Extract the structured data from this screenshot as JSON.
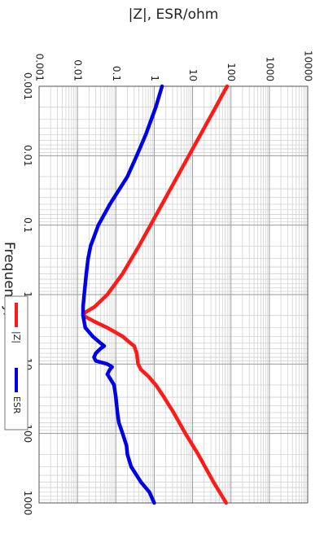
{
  "chart_data": {
    "type": "line",
    "title": "",
    "xlabel": "Frequency/MHz",
    "ylabel": "|Z|, ESR/ohm",
    "x_scale": "log",
    "y_scale": "log",
    "xlim": [
      0.001,
      1000
    ],
    "ylim": [
      0.001,
      10000
    ],
    "x_ticks": [
      "0.001",
      "0.01",
      "0.1",
      "1",
      "10",
      "100",
      "1000"
    ],
    "y_ticks": [
      "0.001",
      "0.01",
      "0.1",
      "1",
      "10",
      "100",
      "1000",
      "10000"
    ],
    "grid": true,
    "legend_position": "bottom",
    "series": [
      {
        "name": "|Z|",
        "color": "#ff1a1a",
        "points": [
          [
            0.001,
            79
          ],
          [
            0.002,
            40
          ],
          [
            0.005,
            16
          ],
          [
            0.01,
            8
          ],
          [
            0.02,
            4
          ],
          [
            0.05,
            1.6
          ],
          [
            0.1,
            0.8
          ],
          [
            0.2,
            0.4
          ],
          [
            0.5,
            0.15
          ],
          [
            1,
            0.06
          ],
          [
            1.5,
            0.028
          ],
          [
            1.8,
            0.016
          ],
          [
            2,
            0.014
          ],
          [
            2.5,
            0.03
          ],
          [
            3,
            0.06
          ],
          [
            4,
            0.15
          ],
          [
            4.8,
            0.22
          ],
          [
            5.5,
            0.3
          ],
          [
            7,
            0.35
          ],
          [
            10,
            0.38
          ],
          [
            12,
            0.45
          ],
          [
            15,
            0.7
          ],
          [
            20,
            1.1
          ],
          [
            30,
            1.8
          ],
          [
            50,
            3.2
          ],
          [
            100,
            6.5
          ],
          [
            200,
            14
          ],
          [
            500,
            35
          ],
          [
            1000,
            75
          ]
        ]
      },
      {
        "name": "ESR",
        "color": "#0000e6",
        "points": [
          [
            0.001,
            1.6
          ],
          [
            0.002,
            1.1
          ],
          [
            0.005,
            0.6
          ],
          [
            0.01,
            0.35
          ],
          [
            0.02,
            0.2
          ],
          [
            0.05,
            0.07
          ],
          [
            0.1,
            0.035
          ],
          [
            0.2,
            0.022
          ],
          [
            0.3,
            0.019
          ],
          [
            0.5,
            0.017
          ],
          [
            1,
            0.015
          ],
          [
            1.5,
            0.014
          ],
          [
            2,
            0.014
          ],
          [
            3,
            0.016
          ],
          [
            4,
            0.025
          ],
          [
            5,
            0.04
          ],
          [
            5.5,
            0.05
          ],
          [
            6,
            0.04
          ],
          [
            7,
            0.03
          ],
          [
            8,
            0.027
          ],
          [
            9,
            0.03
          ],
          [
            10,
            0.06
          ],
          [
            11,
            0.08
          ],
          [
            12,
            0.07
          ],
          [
            14,
            0.06
          ],
          [
            17,
            0.075
          ],
          [
            20,
            0.09
          ],
          [
            30,
            0.1
          ],
          [
            50,
            0.11
          ],
          [
            70,
            0.12
          ],
          [
            100,
            0.15
          ],
          [
            150,
            0.19
          ],
          [
            200,
            0.2
          ],
          [
            300,
            0.25
          ],
          [
            500,
            0.45
          ],
          [
            700,
            0.75
          ],
          [
            1000,
            1.0
          ]
        ]
      }
    ]
  }
}
